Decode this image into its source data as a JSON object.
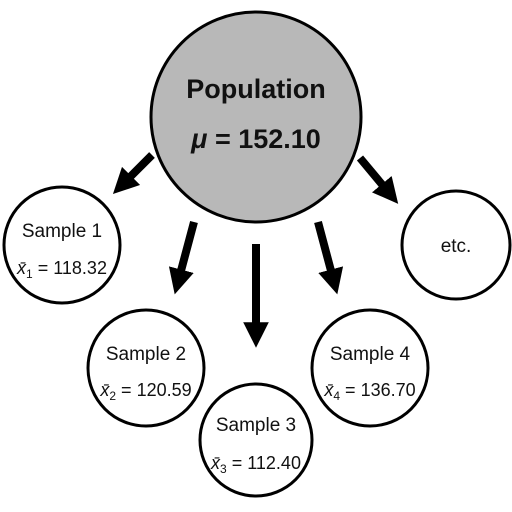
{
  "population": {
    "label": "Population",
    "mean_symbol": "μ",
    "mean_equals": " = ",
    "mean_value": "152.10",
    "fill_color": "#b8b8b8"
  },
  "samples": [
    {
      "label": "Sample 1",
      "mean_symbol": "x̄",
      "subscript": "1",
      "mean_equals": " = ",
      "mean_value": "118.32"
    },
    {
      "label": "Sample 2",
      "mean_symbol": "x̄",
      "subscript": "2",
      "mean_equals": " = ",
      "mean_value": "120.59"
    },
    {
      "label": "Sample 3",
      "mean_symbol": "x̄",
      "subscript": "3",
      "mean_equals": " = ",
      "mean_value": "112.40"
    },
    {
      "label": "Sample 4",
      "mean_symbol": "x̄",
      "subscript": "4",
      "mean_equals": " = ",
      "mean_value": "136.70"
    }
  ],
  "more": {
    "label": "etc."
  },
  "colors": {
    "stroke": "#000000",
    "sample_fill": "#ffffff"
  }
}
